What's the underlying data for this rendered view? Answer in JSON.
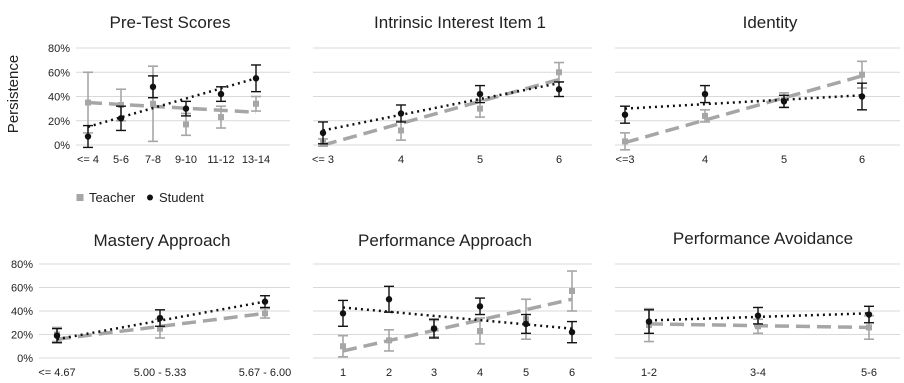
{
  "figure": {
    "ylabel": "Persistence",
    "legend": [
      {
        "label": "Teacher",
        "color": "#a6a6a6",
        "marker": "square"
      },
      {
        "label": "Student",
        "color": "#111111",
        "marker": "circle"
      }
    ]
  },
  "chart_data": [
    {
      "type": "line",
      "title": "Pre-Test Scores",
      "categories": [
        "<= 4",
        "5-6",
        "7-8",
        "9-10",
        "11-12",
        "13-14"
      ],
      "ylim": [
        0,
        80
      ],
      "yticks": [
        "0%",
        "20%",
        "40%",
        "60%",
        "80%"
      ],
      "grid": true,
      "series": [
        {
          "name": "Teacher",
          "values": [
            35,
            33,
            34,
            17,
            23,
            34
          ],
          "err": [
            25,
            13,
            31,
            9,
            9,
            6
          ],
          "trend": [
            35,
            27
          ]
        },
        {
          "name": "Student",
          "values": [
            7,
            22,
            48,
            30,
            42,
            55
          ],
          "err": [
            9,
            10,
            9,
            6,
            6,
            11
          ],
          "trend": [
            15,
            55
          ]
        }
      ]
    },
    {
      "type": "line",
      "title": "Intrinsic Interest Item 1",
      "categories": [
        "<= 3",
        "4",
        "5",
        "6"
      ],
      "ylim": [
        0,
        80
      ],
      "grid": true,
      "series": [
        {
          "name": "Teacher",
          "values": [
            2,
            12,
            30,
            60
          ],
          "err": [
            3,
            8,
            7,
            8
          ],
          "trend": [
            0,
            54
          ]
        },
        {
          "name": "Student",
          "values": [
            10,
            26,
            42,
            46
          ],
          "err": [
            9,
            7,
            7,
            6
          ],
          "trend": [
            12,
            51
          ]
        }
      ]
    },
    {
      "type": "line",
      "title": "Identity",
      "categories": [
        "<=3",
        "4",
        "5",
        "6"
      ],
      "ylim": [
        0,
        80
      ],
      "grid": true,
      "series": [
        {
          "name": "Teacher",
          "values": [
            3,
            24,
            37,
            58
          ],
          "err": [
            7,
            5,
            6,
            11
          ],
          "trend": [
            2,
            57
          ]
        },
        {
          "name": "Student",
          "values": [
            25,
            42,
            36,
            40
          ],
          "err": [
            7,
            7,
            5,
            11
          ],
          "trend": [
            30,
            41
          ]
        }
      ]
    },
    {
      "type": "line",
      "title": "Mastery Approach",
      "categories": [
        "<= 4.67",
        "5.00 - 5.33",
        "5.67 - 6.00"
      ],
      "ylim": [
        0,
        80
      ],
      "yticks": [
        "0%",
        "20%",
        "40%",
        "60%",
        "80%"
      ],
      "grid": true,
      "series": [
        {
          "name": "Teacher",
          "values": [
            20,
            25,
            38
          ],
          "err": [
            6,
            8,
            4
          ],
          "trend": [
            16,
            38
          ]
        },
        {
          "name": "Student",
          "values": [
            19,
            34,
            48
          ],
          "err": [
            6,
            7,
            5
          ],
          "trend": [
            16,
            48
          ]
        }
      ]
    },
    {
      "type": "line",
      "title": "Performance Approach",
      "categories": [
        "1",
        "2",
        "3",
        "4",
        "5",
        "6"
      ],
      "ylim": [
        0,
        80
      ],
      "grid": true,
      "series": [
        {
          "name": "Teacher",
          "values": [
            10,
            15,
            25,
            23,
            33,
            57
          ],
          "err": [
            9,
            9,
            7,
            11,
            17,
            17
          ],
          "trend": [
            6,
            50
          ]
        },
        {
          "name": "Student",
          "values": [
            38,
            50,
            25,
            44,
            29,
            22
          ],
          "err": [
            11,
            11,
            8,
            7,
            8,
            9
          ],
          "trend": [
            43,
            25
          ]
        }
      ]
    },
    {
      "type": "line",
      "title": "Performance Avoidance",
      "categories": [
        "1-2",
        "3-4",
        "5-6"
      ],
      "ylim": [
        0,
        80
      ],
      "grid": true,
      "series": [
        {
          "name": "Teacher",
          "values": [
            28,
            27,
            26
          ],
          "err": [
            14,
            6,
            10
          ],
          "trend": [
            29,
            26
          ]
        },
        {
          "name": "Student",
          "values": [
            31,
            36,
            37
          ],
          "err": [
            10,
            7,
            7
          ],
          "trend": [
            32,
            38
          ]
        }
      ]
    }
  ]
}
